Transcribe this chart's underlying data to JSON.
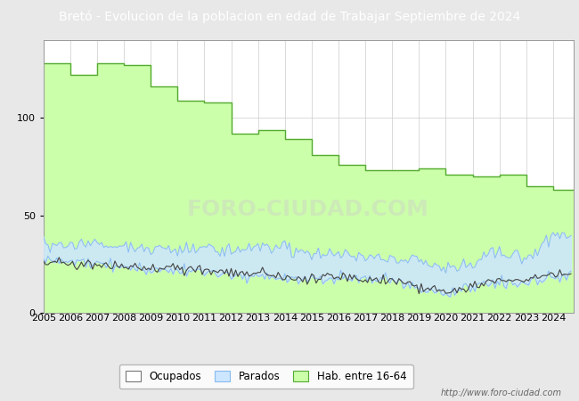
{
  "title": "Bretó - Evolucion de la poblacion en edad de Trabajar Septiembre de 2024",
  "title_bg": "#4f7fbe",
  "title_color": "white",
  "ylim": [
    0,
    140
  ],
  "yticks": [
    0,
    50,
    100
  ],
  "years": [
    2005,
    2006,
    2007,
    2008,
    2009,
    2010,
    2011,
    2012,
    2013,
    2014,
    2015,
    2016,
    2017,
    2018,
    2019,
    2020,
    2021,
    2022,
    2023,
    2024
  ],
  "hab_values": [
    128,
    122,
    128,
    127,
    116,
    109,
    108,
    92,
    94,
    89,
    81,
    76,
    73,
    73,
    74,
    71,
    70,
    71,
    65,
    63
  ],
  "parados_upper_annual": [
    36,
    35,
    35,
    34,
    33,
    32,
    33,
    32,
    34,
    33,
    30,
    30,
    29,
    28,
    26,
    23,
    26,
    32,
    28,
    40
  ],
  "parados_lower_annual": [
    28,
    26,
    25,
    24,
    22,
    22,
    21,
    19,
    19,
    17,
    17,
    18,
    17,
    16,
    12,
    9,
    13,
    16,
    15,
    18
  ],
  "ocupados_annual": [
    27,
    25,
    25,
    24,
    23,
    23,
    22,
    20,
    20,
    18,
    18,
    19,
    18,
    17,
    13,
    10,
    14,
    17,
    16,
    20
  ],
  "watermark": "http://www.foro-ciudad.com",
  "hab_color": "#ccffaa",
  "hab_edge_color": "#55aa33",
  "parados_fill_color": "#cce6ff",
  "parados_line_color": "#88bbee",
  "ocupados_line_color": "#444444",
  "grid_color": "#cccccc",
  "background_color": "#e8e8e8",
  "plot_bg_color": "#ffffff",
  "title_fontsize": 10,
  "tick_fontsize": 8,
  "legend_fontsize": 8.5
}
